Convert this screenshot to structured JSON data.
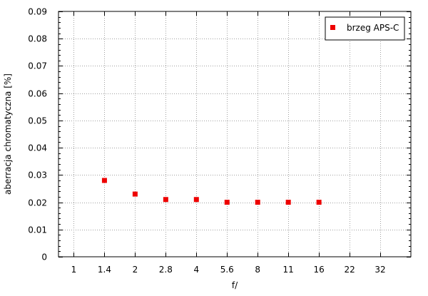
{
  "chart_data": {
    "type": "scatter",
    "xlabel": "f/",
    "ylabel": "aberracja chromatyczna [%]",
    "categories": [
      "1",
      "1.4",
      "2",
      "2.8",
      "4",
      "5.6",
      "8",
      "11",
      "16",
      "22",
      "32"
    ],
    "ylim": [
      0,
      0.09
    ],
    "yticks": [
      "0",
      "0.01",
      "0.02",
      "0.03",
      "0.04",
      "0.05",
      "0.06",
      "0.07",
      "0.08",
      "0.09"
    ],
    "grid": true,
    "legend_position": "top-right",
    "series": [
      {
        "name": "brzeg APS-C",
        "color": "#ee0000",
        "marker": "square",
        "x": [
          "1.4",
          "2",
          "2.8",
          "4",
          "5.6",
          "8",
          "11",
          "16"
        ],
        "values": [
          0.028,
          0.023,
          0.021,
          0.021,
          0.02,
          0.02,
          0.02,
          0.02
        ]
      }
    ]
  }
}
